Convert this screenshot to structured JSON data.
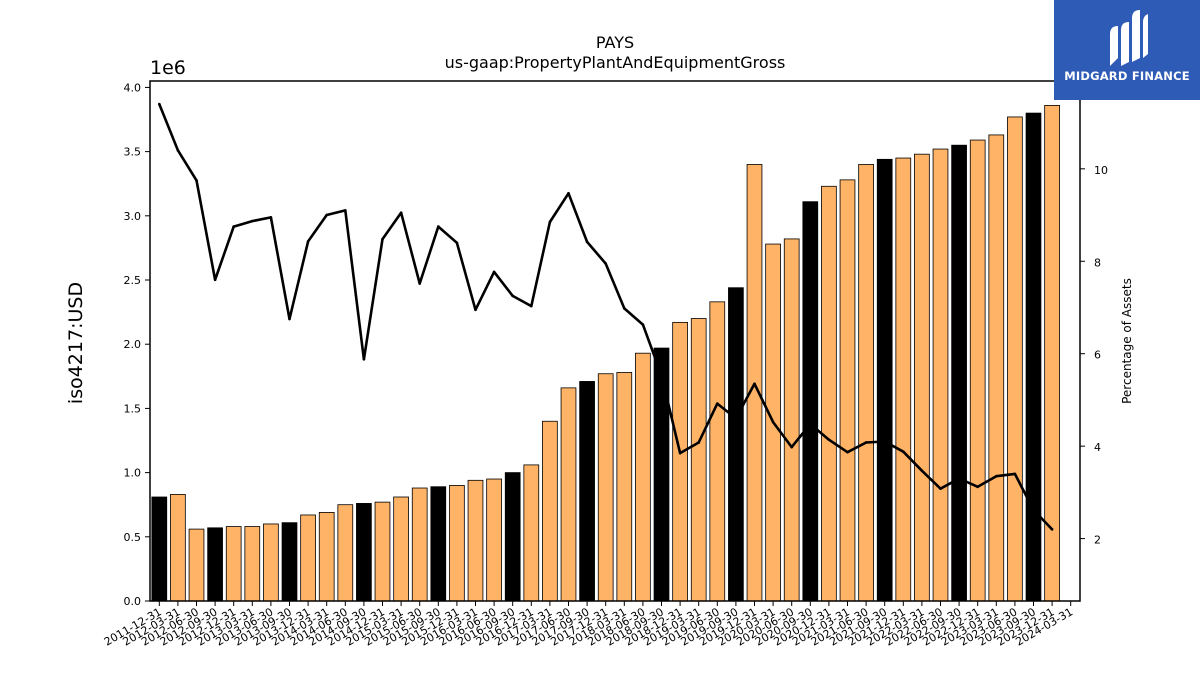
{
  "chart_data": {
    "type": "bar",
    "title": "PAYS",
    "subtitle": "us-gaap:PropertyPlantAndEquipmentGross",
    "ylabel": "iso4217:USD",
    "y_offset_label": "1e6",
    "y2label": "Percentage of Assets",
    "ylim": [
      0,
      4.05
    ],
    "y2lim": [
      0.65,
      11.9
    ],
    "yticks": [
      "0.0",
      "0.5",
      "1.0",
      "1.5",
      "2.0",
      "2.5",
      "3.0",
      "3.5",
      "4.0"
    ],
    "y2ticks": [
      "2",
      "4",
      "6",
      "8",
      "10"
    ],
    "grid": false,
    "colors": {
      "highlight": "#000000",
      "normal": "#ffb366",
      "line": "#000000"
    },
    "categories": [
      "2011-12-31",
      "2012-03-31",
      "2012-06-30",
      "2012-09-30",
      "2012-12-31",
      "2013-03-31",
      "2013-06-30",
      "2013-09-30",
      "2013-12-31",
      "2014-03-31",
      "2014-06-30",
      "2014-09-30",
      "2014-12-31",
      "2015-03-31",
      "2015-06-30",
      "2015-09-30",
      "2015-12-31",
      "2016-03-31",
      "2016-06-30",
      "2016-09-30",
      "2016-12-31",
      "2017-03-31",
      "2017-06-30",
      "2017-09-30",
      "2017-12-31",
      "2018-03-31",
      "2018-06-30",
      "2018-09-30",
      "2018-12-31",
      "2019-03-31",
      "2019-06-30",
      "2019-09-30",
      "2019-12-31",
      "2020-03-31",
      "2020-06-30",
      "2020-09-30",
      "2020-12-31",
      "2021-03-31",
      "2021-06-30",
      "2021-09-30",
      "2021-12-31",
      "2022-03-31",
      "2022-06-30",
      "2022-09-30",
      "2022-12-31",
      "2023-03-31",
      "2023-06-30",
      "2023-09-30",
      "2023-12-31",
      "2024-03-31"
    ],
    "series": [
      {
        "type": "bar",
        "axis": "left",
        "values": [
          0.81,
          0.83,
          0.56,
          0.57,
          0.58,
          0.58,
          0.6,
          0.61,
          0.67,
          0.69,
          0.75,
          0.76,
          0.77,
          0.81,
          0.88,
          0.89,
          0.9,
          0.94,
          0.95,
          1.0,
          1.06,
          1.4,
          1.66,
          1.71,
          1.77,
          1.78,
          1.93,
          1.97,
          2.17,
          2.2,
          2.33,
          2.44,
          3.4,
          2.78,
          2.82,
          3.11,
          3.23,
          3.28,
          3.4,
          3.44,
          3.45,
          3.48,
          3.52,
          3.55,
          3.59,
          3.63,
          3.77,
          3.8,
          3.86,
          null
        ],
        "highlight": [
          true,
          false,
          false,
          true,
          false,
          false,
          false,
          true,
          false,
          false,
          false,
          true,
          false,
          false,
          false,
          true,
          false,
          false,
          false,
          true,
          false,
          false,
          false,
          true,
          false,
          false,
          false,
          true,
          false,
          false,
          false,
          true,
          false,
          false,
          false,
          true,
          false,
          false,
          false,
          true,
          false,
          false,
          false,
          true,
          false,
          false,
          false,
          true,
          false,
          false
        ]
      },
      {
        "type": "line",
        "axis": "right",
        "values": [
          11.4,
          10.4,
          9.75,
          7.6,
          8.75,
          8.87,
          8.95,
          6.75,
          8.43,
          9.0,
          9.1,
          5.88,
          8.48,
          9.05,
          7.52,
          8.75,
          8.4,
          6.95,
          7.77,
          7.25,
          7.03,
          8.85,
          9.47,
          8.42,
          7.95,
          6.98,
          6.63,
          5.53,
          3.85,
          4.08,
          4.92,
          4.6,
          5.35,
          4.52,
          3.98,
          4.48,
          4.14,
          3.87,
          4.08,
          4.1,
          3.88,
          3.47,
          3.08,
          3.3,
          3.12,
          3.35,
          3.4,
          2.62,
          2.2,
          null
        ]
      }
    ]
  },
  "logo": {
    "text": "MIDGARD FINANCE"
  }
}
